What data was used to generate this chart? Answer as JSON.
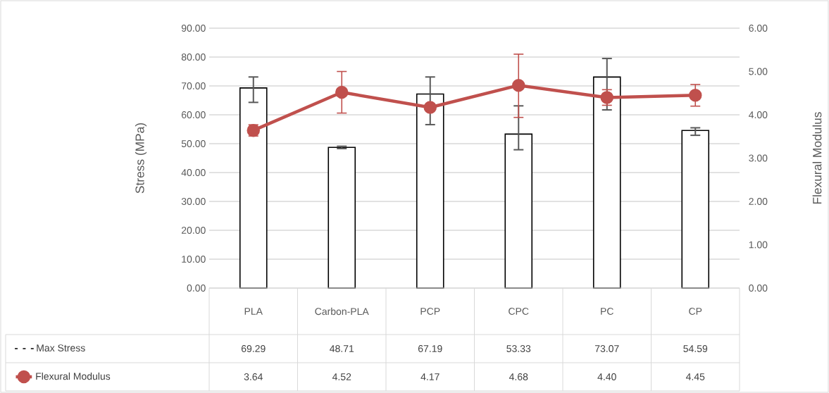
{
  "chart_data": {
    "type": "bar",
    "ylabel": "Stress (MPa)",
    "y2label": "Flexural Modulus",
    "categories": [
      "PLA",
      "Carbon-PLA",
      "PCP",
      "CPC",
      "PC",
      "CP"
    ],
    "series": [
      {
        "name": "Max Stress",
        "color": "#000000",
        "values": [
          69.29,
          48.71,
          67.19,
          53.33,
          73.07,
          54.59
        ],
        "value_labels": [
          "69.29",
          "48.71",
          "67.19",
          "53.33",
          "73.07",
          "54.59"
        ],
        "errors": [
          [
            64.3,
            73.1
          ],
          0.4,
          [
            56.6,
            73.1
          ],
          [
            47.9,
            63.1
          ],
          [
            61.7,
            79.5
          ],
          [
            52.9,
            55.5
          ]
        ]
      },
      {
        "name": "Flexural Modulus",
        "type": "line",
        "axis": "y2",
        "color": "#c0504d",
        "marker": "circle",
        "line_style": "solid",
        "values": [
          3.64,
          4.52,
          4.17,
          4.68,
          4.4,
          4.45
        ],
        "value_labels": [
          "3.64",
          "4.52",
          "4.17",
          "4.68",
          "4.40",
          "4.45"
        ],
        "errors": [
          0.13,
          0.48,
          null,
          [
            3.94,
            5.4
          ],
          0.18,
          0.25
        ]
      }
    ],
    "ylim": [
      0,
      90
    ],
    "yticks": [
      {
        "value": 0,
        "label": "0.00"
      },
      {
        "value": 10,
        "label": "10.00"
      },
      {
        "value": 20,
        "label": "20.00"
      },
      {
        "value": 30,
        "label": "30.00"
      },
      {
        "value": 40,
        "label": "40.00"
      },
      {
        "value": 50,
        "label": "50.00"
      },
      {
        "value": 60,
        "label": "60.00"
      },
      {
        "value": 70,
        "label": "70.00"
      },
      {
        "value": 80,
        "label": "80.00"
      },
      {
        "value": 90,
        "label": "90.00"
      }
    ],
    "y2lim": [
      0,
      6
    ],
    "y2ticks": [
      {
        "value": 0,
        "label": "0.00"
      },
      {
        "value": 1,
        "label": "1.00"
      },
      {
        "value": 2,
        "label": "2.00"
      },
      {
        "value": 3,
        "label": "3.00"
      },
      {
        "value": 4,
        "label": "4.00"
      },
      {
        "value": 5,
        "label": "5.00"
      },
      {
        "value": 6,
        "label": "6.00"
      }
    ],
    "grid": "y",
    "legend": "bottom"
  }
}
